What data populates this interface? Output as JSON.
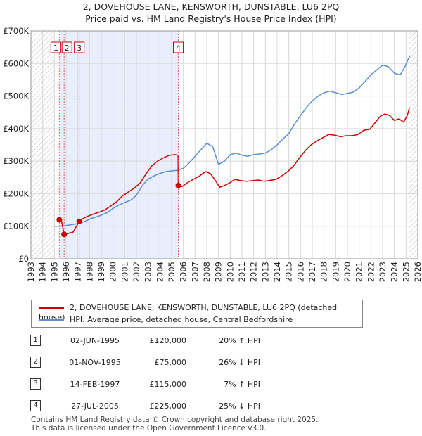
{
  "header": {
    "title": "2, DOVEHOUSE LANE, KENSWORTH, DUNSTABLE, LU6 2PQ",
    "subtitle": "Price paid vs. HM Land Registry's House Price Index (HPI)"
  },
  "colors": {
    "property": "#cc0000",
    "hpi": "#5b8fd1",
    "shade": "#e8eefb",
    "marker_line": "#e06060"
  },
  "chart_data": {
    "type": "line",
    "title": "Price paid vs. HM Land Registry's House Price Index (HPI)",
    "xlabel": "",
    "ylabel": "",
    "xlim": [
      1993,
      2026
    ],
    "ylim": [
      0,
      700000
    ],
    "x_ticks": [
      "1993",
      "1994",
      "1995",
      "1996",
      "1997",
      "1998",
      "1999",
      "2000",
      "2001",
      "2002",
      "2003",
      "2004",
      "2005",
      "2006",
      "2007",
      "2008",
      "2009",
      "2010",
      "2011",
      "2012",
      "2013",
      "2014",
      "2015",
      "2016",
      "2017",
      "2018",
      "2019",
      "2020",
      "2021",
      "2022",
      "2023",
      "2024",
      "2025",
      "2026"
    ],
    "y_ticks": [
      {
        "value": 0,
        "label": "£0"
      },
      {
        "value": 100000,
        "label": "£100K"
      },
      {
        "value": 200000,
        "label": "£200K"
      },
      {
        "value": 300000,
        "label": "£300K"
      },
      {
        "value": 400000,
        "label": "£400K"
      },
      {
        "value": 500000,
        "label": "£500K"
      },
      {
        "value": 600000,
        "label": "£600K"
      },
      {
        "value": 700000,
        "label": "£700K"
      }
    ],
    "grid": true,
    "shaded_ranges": [
      [
        1995.42,
        2005.57
      ]
    ],
    "hatched_ranges": [
      [
        1993,
        1995.0
      ],
      [
        2025.25,
        2026
      ]
    ],
    "series": [
      {
        "name": "2, DOVEHOUSE LANE, KENSWORTH, DUNSTABLE, LU6 2PQ (detached house)",
        "x": [
          1995.42,
          1995.6,
          1995.83,
          1996.2,
          1996.6,
          1997.12,
          1997.4,
          1997.8,
          1998.3,
          1998.8,
          1999.3,
          1999.8,
          2000.3,
          2000.8,
          2001.3,
          2001.8,
          2002.3,
          2002.8,
          2003.3,
          2003.8,
          2004.3,
          2004.8,
          2005.3,
          2005.55,
          2005.57,
          2005.9,
          2006.4,
          2006.9,
          2007.4,
          2007.9,
          2008.3,
          2008.7,
          2009.1,
          2009.5,
          2009.9,
          2010.4,
          2010.9,
          2011.4,
          2011.9,
          2012.4,
          2012.9,
          2013.4,
          2013.9,
          2014.4,
          2014.9,
          2015.4,
          2015.9,
          2016.4,
          2016.9,
          2017.4,
          2017.9,
          2018.4,
          2018.9,
          2019.4,
          2019.9,
          2020.4,
          2020.9,
          2021.4,
          2021.9,
          2022.4,
          2022.8,
          2023.2,
          2023.6,
          2024.0,
          2024.4,
          2024.8,
          2025.1,
          2025.3
        ],
        "y": [
          120000,
          118000,
          75000,
          78000,
          82000,
          115000,
          123000,
          130000,
          137000,
          143000,
          150000,
          162000,
          175000,
          193000,
          205000,
          217000,
          232000,
          260000,
          285000,
          300000,
          310000,
          318000,
          320000,
          318000,
          225000,
          222000,
          235000,
          245000,
          255000,
          268000,
          262000,
          242000,
          220000,
          225000,
          232000,
          244000,
          240000,
          238000,
          240000,
          242000,
          238000,
          241000,
          244000,
          255000,
          268000,
          285000,
          310000,
          332000,
          350000,
          362000,
          372000,
          382000,
          380000,
          375000,
          378000,
          378000,
          382000,
          395000,
          398000,
          420000,
          438000,
          445000,
          440000,
          425000,
          430000,
          420000,
          440000,
          465000
        ],
        "color": "#cc0000"
      },
      {
        "name": "HPI: Average price, detached house, Central Bedfordshire",
        "x": [
          1995.0,
          1995.5,
          1996.0,
          1996.5,
          1997.0,
          1997.5,
          1998.0,
          1998.5,
          1999.0,
          1999.5,
          2000.0,
          2000.5,
          2001.0,
          2001.5,
          2002.0,
          2002.5,
          2003.0,
          2003.5,
          2004.0,
          2004.5,
          2005.0,
          2005.5,
          2006.0,
          2006.5,
          2007.0,
          2007.5,
          2008.0,
          2008.5,
          2009.0,
          2009.5,
          2010.0,
          2010.5,
          2011.0,
          2011.5,
          2012.0,
          2012.5,
          2013.0,
          2013.5,
          2014.0,
          2014.5,
          2015.0,
          2015.5,
          2016.0,
          2016.5,
          2017.0,
          2017.5,
          2018.0,
          2018.5,
          2019.0,
          2019.5,
          2020.0,
          2020.5,
          2021.0,
          2021.5,
          2022.0,
          2022.5,
          2023.0,
          2023.5,
          2024.0,
          2024.5,
          2024.9,
          2025.2,
          2025.35
        ],
        "y": [
          100000,
          100000,
          102000,
          105000,
          108000,
          113000,
          122000,
          128000,
          134000,
          142000,
          155000,
          165000,
          173000,
          180000,
          195000,
          225000,
          245000,
          255000,
          262000,
          268000,
          270000,
          272000,
          278000,
          295000,
          315000,
          335000,
          355000,
          345000,
          290000,
          300000,
          320000,
          325000,
          318000,
          315000,
          320000,
          322000,
          325000,
          335000,
          350000,
          368000,
          385000,
          415000,
          440000,
          465000,
          485000,
          500000,
          510000,
          515000,
          510000,
          505000,
          508000,
          512000,
          525000,
          545000,
          565000,
          580000,
          595000,
          590000,
          570000,
          565000,
          590000,
          615000,
          625000
        ],
        "color": "#5b8fd1"
      }
    ],
    "sale_markers": [
      {
        "label": "1",
        "x": 1995.42,
        "y": 120000
      },
      {
        "label": "2",
        "x": 1995.83,
        "y": 75000
      },
      {
        "label": "3",
        "x": 1997.12,
        "y": 115000
      },
      {
        "label": "4",
        "x": 2005.57,
        "y": 225000
      }
    ]
  },
  "legend": {
    "property": "2, DOVEHOUSE LANE, KENSWORTH, DUNSTABLE, LU6 2PQ (detached house)",
    "hpi": "HPI: Average price, detached house, Central Bedfordshire"
  },
  "sales": [
    {
      "num": "1",
      "date": "02-JUN-1995",
      "price": "£120,000",
      "hpi": "20% ↑ HPI"
    },
    {
      "num": "2",
      "date": "01-NOV-1995",
      "price": "£75,000",
      "hpi": "26% ↓ HPI"
    },
    {
      "num": "3",
      "date": "14-FEB-1997",
      "price": "£115,000",
      "hpi": "7% ↑ HPI"
    },
    {
      "num": "4",
      "date": "27-JUL-2005",
      "price": "£225,000",
      "hpi": "25% ↓ HPI"
    }
  ],
  "footer": {
    "line1": "Contains HM Land Registry data © Crown copyright and database right 2025.",
    "line2": "This data is licensed under the Open Government Licence v3.0."
  }
}
